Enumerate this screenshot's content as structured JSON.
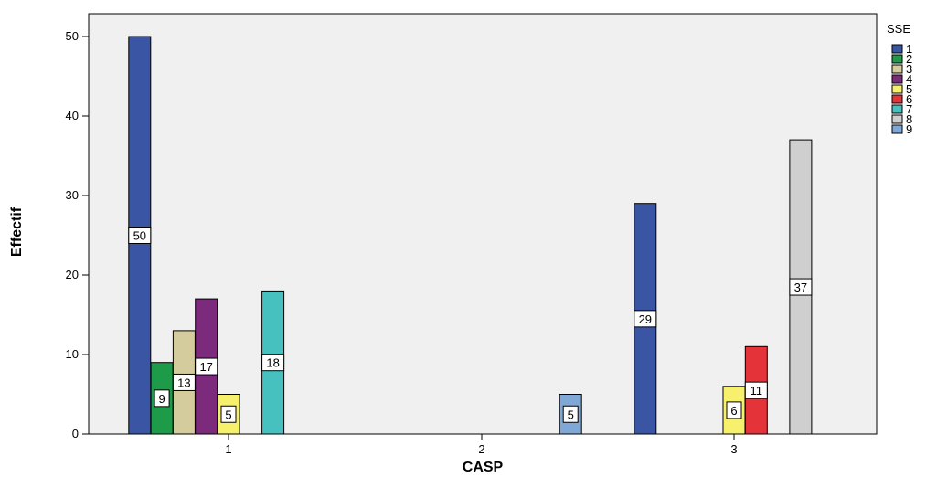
{
  "chart_data": {
    "type": "bar",
    "xlabel": "CASP",
    "ylabel": "Effectif",
    "ylim": [
      0,
      52
    ],
    "yticks": [
      0,
      10,
      20,
      30,
      40,
      50
    ],
    "categories": [
      "1",
      "2",
      "3"
    ],
    "legend_title": "SSE",
    "legend_position": "right",
    "grid": false,
    "series": [
      {
        "name": "1",
        "color": "#3a55a4",
        "values": [
          50,
          0,
          29
        ]
      },
      {
        "name": "2",
        "color": "#1e9b48",
        "values": [
          9,
          0,
          0
        ]
      },
      {
        "name": "3",
        "color": "#d4cc9c",
        "values": [
          13,
          0,
          0
        ]
      },
      {
        "name": "4",
        "color": "#7b2a7c",
        "values": [
          17,
          0,
          0
        ]
      },
      {
        "name": "5",
        "color": "#f6f06c",
        "values": [
          5,
          0,
          6
        ]
      },
      {
        "name": "6",
        "color": "#e5333a",
        "values": [
          0,
          0,
          11
        ]
      },
      {
        "name": "7",
        "color": "#46c1c0",
        "values": [
          18,
          0,
          0
        ]
      },
      {
        "name": "8",
        "color": "#cfcfcf",
        "values": [
          0,
          0,
          37
        ]
      },
      {
        "name": "9",
        "color": "#7fa8d6",
        "values": [
          0,
          5,
          0
        ]
      }
    ]
  }
}
